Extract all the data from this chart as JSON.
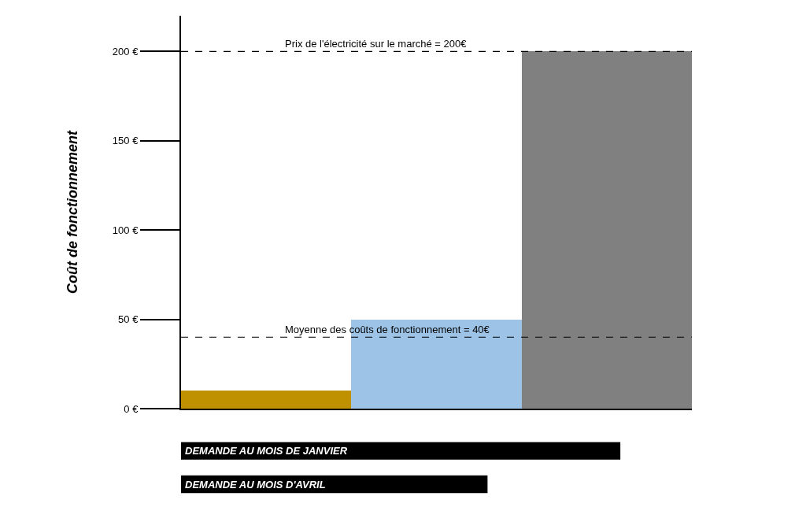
{
  "chart_data": {
    "type": "bar",
    "ylabel": "Coût de fonctionnement",
    "categories": [
      null,
      null,
      null
    ],
    "values": [
      10,
      50,
      200
    ],
    "colors": [
      "#bf9000",
      "#9dc3e6",
      "#808080"
    ],
    "ylim": [
      0,
      220
    ],
    "yticks": [
      {
        "value": 0,
        "label": "0 €"
      },
      {
        "value": 50,
        "label": "50 €"
      },
      {
        "value": 100,
        "label": "100 €"
      },
      {
        "value": 150,
        "label": "150 €"
      },
      {
        "value": 200,
        "label": "200 €"
      }
    ],
    "ref_lines": [
      {
        "axis": "y",
        "value": 200,
        "label": "Prix de l'électricité sur le marché = 200€",
        "color": "#000000",
        "line_style": "dashed"
      },
      {
        "axis": "y",
        "value": 40,
        "label": "Moyenne des coûts de fonctionnement = 40€",
        "color": "#000000",
        "line_style": "dashed"
      }
    ],
    "annotations": [
      "DEMANDE AU MOIS DE JANVIER",
      "DEMANDE AU MOIS D'AVRIL"
    ]
  }
}
